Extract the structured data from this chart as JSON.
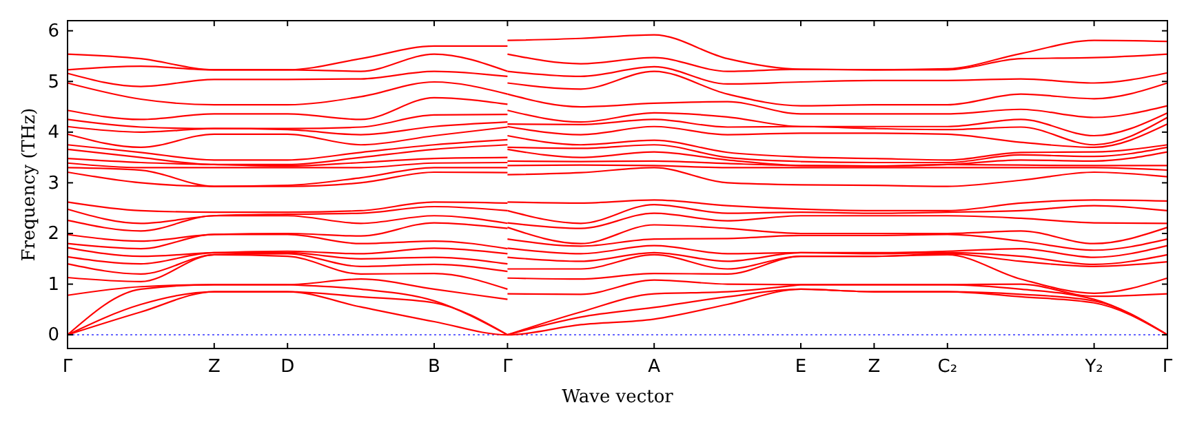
{
  "chart_data": {
    "type": "line",
    "xlabel": "Wave vector",
    "ylabel": "Frequency (THz)",
    "ylim": [
      -0.27,
      6.2
    ],
    "yticks": [
      0,
      1,
      2,
      3,
      4,
      5,
      6
    ],
    "categories": [
      "Γ",
      null,
      "Z",
      "D",
      null,
      "B",
      "Γ",
      null,
      "A",
      null,
      "E",
      "Z",
      "C₂",
      null,
      "Y₂",
      "Γ"
    ],
    "ref_lines": [
      {
        "axis": "y",
        "value": 0,
        "color": "#4d4dff",
        "line_style": "dotted"
      }
    ],
    "series": [
      {
        "color": "#ff0000",
        "values": [
          0,
          0.45,
          0.85,
          0.85,
          0.55,
          0.26,
          0,
          0.2,
          0.31,
          0.6,
          0.9,
          0.85,
          0.85,
          0.75,
          0.63,
          0
        ]
      },
      {
        "color": "#ff0000",
        "values": [
          0,
          0.6,
          0.85,
          0.85,
          0.75,
          0.63,
          0,
          null,
          null,
          null,
          null,
          null,
          null,
          null,
          null,
          null
        ]
      },
      {
        "color": "#ff0000",
        "values": [
          null,
          null,
          null,
          null,
          null,
          null,
          0,
          0.35,
          0.54,
          0.75,
          0.9,
          0.85,
          0.85,
          0.8,
          0.67,
          0
        ]
      },
      {
        "color": "#ff0000",
        "values": [
          0,
          0.9,
          0.99,
          0.99,
          null,
          null,
          null,
          null,
          null,
          null,
          null,
          null,
          null,
          null,
          null,
          null
        ]
      },
      {
        "color": "#ff0000",
        "values": [
          null,
          null,
          null,
          0.99,
          0.9,
          0.67,
          0,
          null,
          null,
          null,
          null,
          null,
          null,
          null,
          null,
          null
        ]
      },
      {
        "color": "#ff0000",
        "values": [
          null,
          null,
          null,
          null,
          null,
          null,
          0,
          0.45,
          0.81,
          0.85,
          0.99,
          null,
          null,
          null,
          null,
          null
        ]
      },
      {
        "color": "#ff0000",
        "values": [
          null,
          null,
          null,
          null,
          null,
          null,
          null,
          null,
          null,
          null,
          0.99,
          0.99,
          0.99,
          0.9,
          0.7,
          0
        ]
      },
      {
        "color": "#ff0000",
        "values": [
          0.78,
          0.95,
          0.99,
          0.99,
          1.1,
          0.9,
          0.7,
          null,
          null,
          null,
          null,
          null,
          null,
          null,
          null,
          null
        ]
      },
      {
        "color": "#ff0000",
        "values": [
          1.13,
          1.05,
          1.58,
          1.55,
          1.2,
          1.21,
          0.9,
          null,
          null,
          null,
          null,
          null,
          null,
          null,
          null,
          null
        ]
      },
      {
        "color": "#ff0000",
        "values": [
          1.4,
          1.2,
          1.58,
          1.6,
          1.35,
          1.39,
          1.25,
          null,
          null,
          null,
          null,
          null,
          null,
          null,
          null,
          null
        ]
      },
      {
        "color": "#ff0000",
        "values": [
          1.54,
          1.4,
          1.62,
          1.62,
          1.5,
          1.53,
          1.4,
          null,
          null,
          null,
          null,
          null,
          null,
          null,
          null,
          null
        ]
      },
      {
        "color": "#ff0000",
        "values": [
          1.72,
          1.55,
          1.62,
          1.65,
          1.6,
          1.71,
          1.6,
          null,
          null,
          null,
          null,
          null,
          null,
          null,
          null,
          null
        ]
      },
      {
        "color": "#ff0000",
        "values": [
          1.8,
          1.7,
          1.98,
          1.98,
          1.8,
          1.85,
          1.7,
          null,
          null,
          null,
          null,
          null,
          null,
          null,
          null,
          null
        ]
      },
      {
        "color": "#ff0000",
        "values": [
          1.98,
          1.85,
          1.98,
          2.0,
          1.95,
          2.21,
          2.1,
          null,
          null,
          null,
          null,
          null,
          null,
          null,
          null,
          null
        ]
      },
      {
        "color": "#ff0000",
        "values": [
          2.26,
          2.05,
          2.35,
          2.35,
          2.2,
          2.35,
          2.2,
          null,
          null,
          null,
          null,
          null,
          null,
          null,
          null,
          null
        ]
      },
      {
        "color": "#ff0000",
        "values": [
          2.48,
          2.2,
          2.35,
          2.38,
          2.4,
          2.53,
          2.45,
          null,
          null,
          null,
          null,
          null,
          null,
          null,
          null,
          null
        ]
      },
      {
        "color": "#ff0000",
        "values": [
          2.62,
          2.45,
          2.42,
          2.42,
          2.45,
          2.62,
          2.6,
          null,
          null,
          null,
          null,
          null,
          null,
          null,
          null,
          null
        ]
      },
      {
        "color": "#ff0000",
        "values": [
          3.21,
          3.0,
          2.93,
          2.93,
          3.0,
          3.21,
          3.2,
          null,
          null,
          null,
          null,
          null,
          null,
          null,
          null,
          null
        ]
      },
      {
        "color": "#ff0000",
        "values": [
          3.3,
          3.25,
          2.93,
          2.95,
          3.1,
          3.3,
          3.3,
          null,
          null,
          null,
          null,
          null,
          null,
          null,
          null,
          null
        ]
      },
      {
        "color": "#ff0000",
        "values": [
          3.39,
          3.3,
          3.3,
          3.3,
          3.3,
          3.39,
          3.4,
          null,
          null,
          null,
          null,
          null,
          null,
          null,
          null,
          null
        ]
      },
      {
        "color": "#ff0000",
        "values": [
          3.48,
          3.4,
          3.36,
          3.33,
          3.4,
          3.48,
          3.5,
          null,
          null,
          null,
          null,
          null,
          null,
          null,
          null,
          null
        ]
      },
      {
        "color": "#ff0000",
        "values": [
          3.66,
          3.5,
          3.36,
          3.36,
          3.5,
          3.66,
          3.75,
          null,
          null,
          null,
          null,
          null,
          null,
          null,
          null,
          null
        ]
      },
      {
        "color": "#ff0000",
        "values": [
          3.75,
          3.6,
          3.45,
          3.45,
          3.6,
          3.75,
          3.85,
          null,
          null,
          null,
          null,
          null,
          null,
          null,
          null,
          null
        ]
      },
      {
        "color": "#ff0000",
        "values": [
          3.96,
          3.7,
          3.96,
          3.96,
          3.75,
          3.93,
          4.1,
          null,
          null,
          null,
          null,
          null,
          null,
          null,
          null,
          null
        ]
      },
      {
        "color": "#ff0000",
        "values": [
          4.11,
          4.0,
          4.07,
          4.05,
          3.95,
          4.11,
          4.2,
          null,
          null,
          null,
          null,
          null,
          null,
          null,
          null,
          null
        ]
      },
      {
        "color": "#ff0000",
        "values": [
          4.25,
          4.1,
          4.07,
          4.07,
          4.1,
          4.34,
          4.35,
          null,
          null,
          null,
          null,
          null,
          null,
          null,
          null,
          null
        ]
      },
      {
        "color": "#ff0000",
        "values": [
          4.43,
          4.25,
          4.36,
          4.36,
          4.25,
          4.68,
          4.55,
          null,
          null,
          null,
          null,
          null,
          null,
          null,
          null,
          null
        ]
      },
      {
        "color": "#ff0000",
        "values": [
          4.97,
          4.65,
          4.54,
          4.54,
          4.7,
          4.99,
          4.75,
          null,
          null,
          null,
          null,
          null,
          null,
          null,
          null,
          null
        ]
      },
      {
        "color": "#ff0000",
        "values": [
          5.16,
          4.9,
          5.04,
          5.04,
          5.05,
          5.2,
          5.1,
          null,
          null,
          null,
          null,
          null,
          null,
          null,
          null,
          null
        ]
      },
      {
        "color": "#ff0000",
        "values": [
          5.23,
          5.3,
          5.23,
          5.23,
          5.2,
          5.54,
          5.2,
          null,
          null,
          null,
          null,
          null,
          null,
          null,
          null,
          null
        ]
      },
      {
        "color": "#ff0000",
        "values": [
          5.54,
          5.45,
          5.23,
          5.23,
          5.45,
          5.7,
          5.7,
          null,
          null,
          null,
          null,
          null,
          null,
          null,
          null,
          null
        ]
      },
      {
        "color": "#ff0000",
        "values": [
          null,
          null,
          null,
          null,
          null,
          null,
          0.81,
          0.8,
          1.08,
          1.0,
          0.99,
          0.99,
          0.99,
          1.0,
          0.76,
          0.81
        ]
      },
      {
        "color": "#ff0000",
        "values": [
          null,
          null,
          null,
          null,
          null,
          null,
          1.12,
          1.1,
          1.21,
          1.2,
          1.55,
          1.55,
          1.58,
          1.1,
          0.82,
          1.12
        ]
      },
      {
        "color": "#ff0000",
        "values": [
          null,
          null,
          null,
          null,
          null,
          null,
          1.3,
          1.3,
          1.58,
          1.3,
          1.55,
          1.55,
          1.6,
          1.45,
          1.35,
          1.44
        ]
      },
      {
        "color": "#ff0000",
        "values": [
          null,
          null,
          null,
          null,
          null,
          null,
          1.53,
          1.45,
          1.62,
          1.45,
          1.62,
          1.6,
          1.62,
          1.55,
          1.39,
          1.58
        ]
      },
      {
        "color": "#ff0000",
        "values": [
          null,
          null,
          null,
          null,
          null,
          null,
          1.71,
          1.6,
          1.76,
          1.6,
          1.62,
          1.62,
          1.65,
          1.7,
          1.53,
          1.76
        ]
      },
      {
        "color": "#ff0000",
        "values": [
          null,
          null,
          null,
          null,
          null,
          null,
          1.89,
          1.75,
          1.89,
          1.9,
          1.96,
          1.96,
          1.98,
          1.85,
          1.67,
          1.89
        ]
      },
      {
        "color": "#ff0000",
        "values": [
          null,
          null,
          null,
          null,
          null,
          null,
          2.12,
          1.8,
          2.17,
          2.1,
          2.0,
          2.0,
          2.0,
          2.05,
          1.8,
          2.12
        ]
      },
      {
        "color": "#ff0000",
        "values": [
          null,
          null,
          null,
          null,
          null,
          null,
          2.21,
          2.1,
          2.4,
          2.25,
          2.35,
          2.35,
          2.35,
          2.3,
          2.21,
          2.2
        ]
      },
      {
        "color": "#ff0000",
        "values": [
          null,
          null,
          null,
          null,
          null,
          null,
          2.45,
          2.2,
          2.57,
          2.4,
          2.42,
          2.4,
          2.42,
          2.45,
          2.55,
          2.45
        ]
      },
      {
        "color": "#ff0000",
        "values": [
          null,
          null,
          null,
          null,
          null,
          null,
          2.62,
          2.6,
          2.66,
          2.55,
          2.48,
          2.45,
          2.45,
          2.6,
          2.66,
          2.64
        ]
      },
      {
        "color": "#ff0000",
        "values": [
          null,
          null,
          null,
          null,
          null,
          null,
          3.16,
          3.2,
          3.3,
          3.0,
          2.96,
          2.95,
          2.93,
          3.05,
          3.21,
          3.12
        ]
      },
      {
        "color": "#ff0000",
        "values": [
          null,
          null,
          null,
          null,
          null,
          null,
          3.34,
          3.35,
          3.34,
          3.3,
          3.3,
          3.3,
          3.3,
          3.3,
          3.3,
          3.25
        ]
      },
      {
        "color": "#ff0000",
        "values": [
          null,
          null,
          null,
          null,
          null,
          null,
          3.43,
          3.42,
          3.43,
          3.38,
          3.34,
          3.33,
          3.36,
          3.35,
          3.34,
          3.34
        ]
      },
      {
        "color": "#ff0000",
        "values": [
          null,
          null,
          null,
          null,
          null,
          null,
          3.66,
          3.5,
          3.61,
          3.45,
          3.34,
          3.33,
          3.36,
          3.45,
          3.43,
          3.61
        ]
      },
      {
        "color": "#ff0000",
        "values": [
          null,
          null,
          null,
          null,
          null,
          null,
          3.7,
          3.68,
          3.75,
          3.5,
          3.42,
          3.4,
          3.4,
          3.55,
          3.52,
          3.7
        ]
      },
      {
        "color": "#ff0000",
        "values": [
          null,
          null,
          null,
          null,
          null,
          null,
          3.93,
          3.75,
          3.84,
          3.6,
          3.51,
          3.48,
          3.45,
          3.6,
          3.61,
          3.75
        ]
      },
      {
        "color": "#ff0000",
        "values": [
          null,
          null,
          null,
          null,
          null,
          null,
          4.11,
          3.95,
          4.11,
          3.95,
          3.98,
          3.98,
          3.96,
          3.8,
          3.7,
          4.16
        ]
      },
      {
        "color": "#ff0000",
        "values": [
          null,
          null,
          null,
          null,
          null,
          null,
          4.16,
          4.15,
          4.25,
          4.1,
          4.11,
          4.07,
          4.05,
          4.1,
          3.75,
          4.29
        ]
      },
      {
        "color": "#ff0000",
        "values": [
          null,
          null,
          null,
          null,
          null,
          null,
          4.43,
          4.2,
          4.38,
          4.3,
          4.11,
          4.11,
          4.11,
          4.25,
          3.93,
          4.38
        ]
      },
      {
        "color": "#ff0000",
        "values": [
          null,
          null,
          null,
          null,
          null,
          null,
          4.75,
          4.5,
          4.57,
          4.6,
          4.36,
          4.36,
          4.36,
          4.45,
          4.29,
          4.52
        ]
      },
      {
        "color": "#ff0000",
        "values": [
          null,
          null,
          null,
          null,
          null,
          null,
          4.97,
          4.85,
          5.2,
          4.75,
          4.52,
          4.54,
          4.54,
          4.75,
          4.66,
          4.97
        ]
      },
      {
        "color": "#ff0000",
        "values": [
          null,
          null,
          null,
          null,
          null,
          null,
          5.2,
          5.1,
          5.29,
          4.95,
          4.99,
          5.02,
          5.02,
          5.05,
          4.97,
          5.17
        ]
      },
      {
        "color": "#ff0000",
        "values": [
          null,
          null,
          null,
          null,
          null,
          null,
          5.54,
          5.35,
          5.47,
          5.2,
          5.24,
          5.23,
          5.23,
          5.45,
          5.47,
          5.54
        ]
      },
      {
        "color": "#ff0000",
        "values": [
          null,
          null,
          null,
          null,
          null,
          null,
          5.81,
          5.85,
          5.92,
          5.45,
          5.24,
          5.23,
          5.25,
          5.55,
          5.81,
          5.79
        ]
      }
    ]
  }
}
